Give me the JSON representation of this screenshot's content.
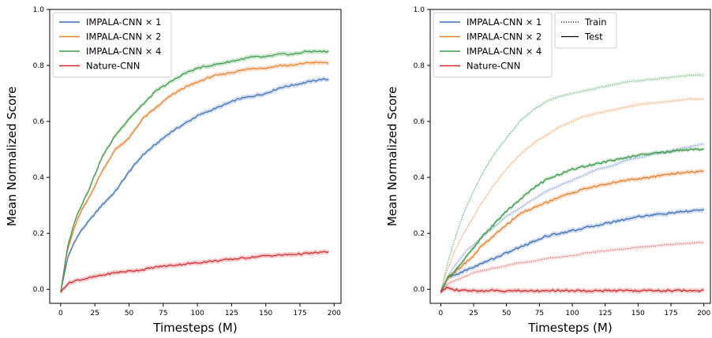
{
  "chart_data": [
    {
      "type": "line",
      "xlabel": "Timesteps (M)",
      "ylabel": "Mean Normalized Score",
      "xlim": [
        -8,
        205
      ],
      "ylim": [
        -0.05,
        1.0
      ],
      "xticks": [
        0,
        25,
        50,
        75,
        100,
        125,
        150,
        175,
        200
      ],
      "yticks": [
        0.0,
        0.2,
        0.4,
        0.6,
        0.8,
        1.0
      ],
      "xtick_labels": [
        "0",
        "25",
        "50",
        "75",
        "100",
        "125",
        "150",
        "175",
        "200"
      ],
      "ytick_labels": [
        "0.0",
        "0.2",
        "0.4",
        "0.6",
        "0.8",
        "1.0"
      ],
      "grid": false,
      "legend_position": "top-left",
      "x": [
        0,
        5,
        10,
        15,
        20,
        25,
        30,
        40,
        50,
        60,
        70,
        80,
        90,
        100,
        110,
        120,
        130,
        140,
        150,
        160,
        170,
        180,
        190,
        196
      ],
      "series": [
        {
          "name": "IMPALA-CNN × 1",
          "color": "#3a6fb5",
          "values": [
            -0.01,
            0.11,
            0.17,
            0.21,
            0.24,
            0.27,
            0.3,
            0.35,
            0.42,
            0.48,
            0.52,
            0.56,
            0.59,
            0.62,
            0.64,
            0.66,
            0.68,
            0.69,
            0.7,
            0.72,
            0.73,
            0.74,
            0.75,
            0.75
          ]
        },
        {
          "name": "IMPALA-CNN × 2",
          "color": "#e6812e",
          "values": [
            -0.01,
            0.14,
            0.22,
            0.28,
            0.32,
            0.37,
            0.42,
            0.5,
            0.54,
            0.61,
            0.65,
            0.69,
            0.72,
            0.74,
            0.76,
            0.77,
            0.78,
            0.79,
            0.79,
            0.8,
            0.8,
            0.81,
            0.81,
            0.81
          ]
        },
        {
          "name": "IMPALA-CNN × 4",
          "color": "#3a9a47",
          "values": [
            -0.01,
            0.15,
            0.24,
            0.3,
            0.35,
            0.41,
            0.47,
            0.55,
            0.61,
            0.66,
            0.71,
            0.74,
            0.77,
            0.79,
            0.8,
            0.81,
            0.82,
            0.83,
            0.83,
            0.84,
            0.84,
            0.85,
            0.85,
            0.85
          ]
        },
        {
          "name": "Nature-CNN",
          "color": "#d1262b",
          "values": [
            -0.01,
            0.02,
            0.03,
            0.035,
            0.04,
            0.045,
            0.05,
            0.06,
            0.065,
            0.07,
            0.08,
            0.085,
            0.09,
            0.095,
            0.1,
            0.105,
            0.11,
            0.115,
            0.12,
            0.122,
            0.125,
            0.128,
            0.132,
            0.134
          ]
        }
      ]
    },
    {
      "type": "line",
      "xlabel": "Timesteps (M)",
      "ylabel": "Mean Normalized Score",
      "xlim": [
        -8,
        205
      ],
      "ylim": [
        -0.05,
        1.0
      ],
      "xticks": [
        0,
        25,
        50,
        75,
        100,
        125,
        150,
        175,
        200
      ],
      "yticks": [
        0.0,
        0.2,
        0.4,
        0.6,
        0.8,
        1.0
      ],
      "xtick_labels": [
        "0",
        "25",
        "50",
        "75",
        "100",
        "125",
        "150",
        "175",
        "200"
      ],
      "ytick_labels": [
        "0.0",
        "0.2",
        "0.4",
        "0.6",
        "0.8",
        "1.0"
      ],
      "grid": false,
      "legend_position": "top-left",
      "style_legend": [
        {
          "label": "Train",
          "linestyle": "dotted"
        },
        {
          "label": "Test",
          "linestyle": "solid"
        }
      ],
      "x": [
        0,
        5,
        10,
        15,
        20,
        25,
        30,
        40,
        50,
        60,
        70,
        80,
        90,
        100,
        110,
        120,
        130,
        140,
        150,
        160,
        170,
        180,
        190,
        200
      ],
      "series": [
        {
          "name": "IMPALA-CNN × 1",
          "color": "#3a6fb5",
          "train": [
            -0.01,
            0.04,
            0.08,
            0.11,
            0.14,
            0.16,
            0.18,
            0.22,
            0.26,
            0.29,
            0.32,
            0.35,
            0.37,
            0.39,
            0.41,
            0.43,
            0.44,
            0.46,
            0.47,
            0.48,
            0.49,
            0.5,
            0.51,
            0.52
          ],
          "test": [
            -0.01,
            0.04,
            0.05,
            0.06,
            0.07,
            0.08,
            0.09,
            0.11,
            0.13,
            0.15,
            0.17,
            0.19,
            0.2,
            0.21,
            0.22,
            0.23,
            0.24,
            0.25,
            0.26,
            0.265,
            0.27,
            0.275,
            0.28,
            0.285
          ]
        },
        {
          "name": "IMPALA-CNN × 2",
          "color": "#e6812e",
          "train": [
            -0.01,
            0.07,
            0.13,
            0.18,
            0.22,
            0.26,
            0.3,
            0.37,
            0.43,
            0.48,
            0.52,
            0.55,
            0.58,
            0.6,
            0.62,
            0.63,
            0.64,
            0.65,
            0.66,
            0.665,
            0.67,
            0.675,
            0.68,
            0.68
          ],
          "test": [
            -0.01,
            0.04,
            0.06,
            0.08,
            0.1,
            0.12,
            0.15,
            0.19,
            0.23,
            0.27,
            0.29,
            0.31,
            0.33,
            0.345,
            0.36,
            0.37,
            0.38,
            0.39,
            0.395,
            0.4,
            0.41,
            0.415,
            0.42,
            0.42
          ]
        },
        {
          "name": "IMPALA-CNN × 4",
          "color": "#3a9a47",
          "train": [
            -0.01,
            0.09,
            0.17,
            0.24,
            0.3,
            0.35,
            0.4,
            0.48,
            0.54,
            0.6,
            0.64,
            0.67,
            0.69,
            0.7,
            0.71,
            0.72,
            0.73,
            0.74,
            0.745,
            0.75,
            0.755,
            0.76,
            0.765,
            0.765
          ]
        },
        {
          "name": "Nature-CNN",
          "color": "#d1262b",
          "train": [
            -0.01,
            0.02,
            0.03,
            0.04,
            0.05,
            0.06,
            0.065,
            0.075,
            0.085,
            0.095,
            0.1,
            0.11,
            0.115,
            0.12,
            0.13,
            0.135,
            0.14,
            0.145,
            0.15,
            0.155,
            0.158,
            0.162,
            0.165,
            0.168
          ],
          "test": [
            -0.01,
            0.01,
            0.0,
            -0.005,
            -0.005,
            -0.005,
            -0.005,
            -0.005,
            -0.005,
            -0.005,
            -0.005,
            -0.005,
            -0.005,
            -0.005,
            -0.005,
            -0.005,
            -0.005,
            -0.005,
            -0.005,
            -0.005,
            -0.005,
            -0.005,
            -0.005,
            -0.005
          ]
        }
      ]
    }
  ]
}
